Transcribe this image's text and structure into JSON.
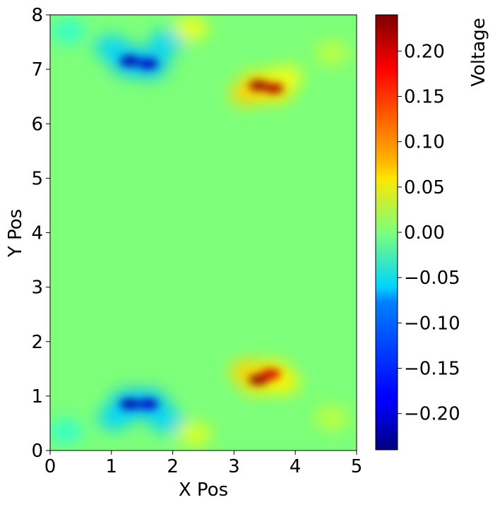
{
  "chart_data": {
    "type": "heatmap",
    "title": "",
    "xlabel": "X Pos",
    "ylabel": "Y Pos",
    "xlim": [
      0,
      5
    ],
    "ylim": [
      0,
      8
    ],
    "xticks": [
      "0",
      "1",
      "2",
      "3",
      "4",
      "5"
    ],
    "yticks": [
      "0",
      "1",
      "2",
      "3",
      "4",
      "5",
      "6",
      "7",
      "8"
    ],
    "colormap": "jet",
    "colorbar": {
      "label": "Voltage",
      "range": [
        -0.24,
        0.24
      ],
      "ticks": [
        {
          "value": 0.2,
          "label": "0.20"
        },
        {
          "value": 0.15,
          "label": "0.15"
        },
        {
          "value": 0.1,
          "label": "0.10"
        },
        {
          "value": 0.05,
          "label": "0.05"
        },
        {
          "value": 0.0,
          "label": "0.00"
        },
        {
          "value": -0.05,
          "label": "−0.05"
        },
        {
          "value": -0.1,
          "label": "−0.10"
        },
        {
          "value": -0.15,
          "label": "−0.15"
        },
        {
          "value": -0.2,
          "label": "−0.20"
        }
      ]
    },
    "features": [
      {
        "x": 1.3,
        "y": 7.15,
        "value": -0.22
      },
      {
        "x": 1.6,
        "y": 7.1,
        "value": -0.21
      },
      {
        "x": 1.0,
        "y": 7.4,
        "value": -0.1
      },
      {
        "x": 1.9,
        "y": 7.5,
        "value": -0.1
      },
      {
        "x": 3.4,
        "y": 6.7,
        "value": 0.23
      },
      {
        "x": 3.65,
        "y": 6.65,
        "value": 0.22
      },
      {
        "x": 3.2,
        "y": 6.55,
        "value": 0.1
      },
      {
        "x": 3.85,
        "y": 6.85,
        "value": 0.07
      },
      {
        "x": 1.3,
        "y": 0.85,
        "value": -0.22
      },
      {
        "x": 1.6,
        "y": 0.85,
        "value": -0.21
      },
      {
        "x": 1.05,
        "y": 0.6,
        "value": -0.1
      },
      {
        "x": 1.9,
        "y": 0.55,
        "value": -0.1
      },
      {
        "x": 3.4,
        "y": 1.3,
        "value": 0.24
      },
      {
        "x": 3.6,
        "y": 1.4,
        "value": 0.2
      },
      {
        "x": 3.2,
        "y": 1.45,
        "value": 0.1
      },
      {
        "x": 3.8,
        "y": 1.25,
        "value": 0.08
      },
      {
        "x": 2.3,
        "y": 7.75,
        "value": 0.07
      },
      {
        "x": 2.35,
        "y": 0.3,
        "value": 0.06
      },
      {
        "x": 0.3,
        "y": 7.7,
        "value": -0.05
      },
      {
        "x": 0.25,
        "y": 0.35,
        "value": -0.05
      },
      {
        "x": 4.6,
        "y": 7.3,
        "value": 0.04
      },
      {
        "x": 4.6,
        "y": 0.6,
        "value": 0.04
      }
    ]
  }
}
